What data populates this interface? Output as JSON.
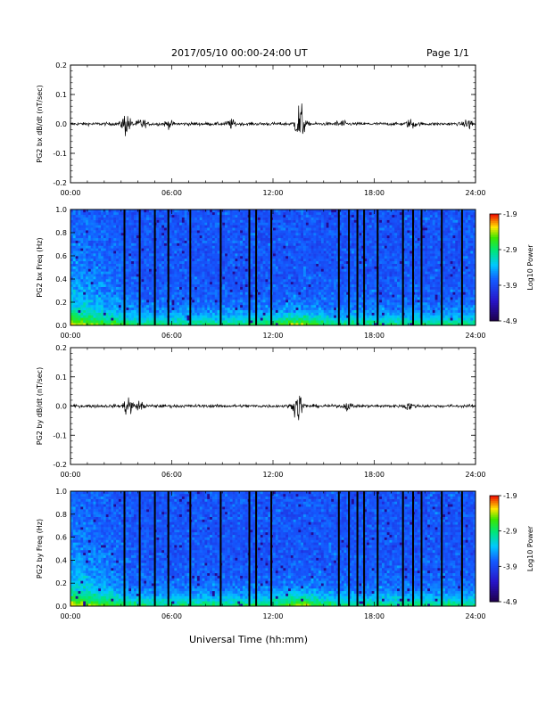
{
  "header": {
    "title": "2017/05/10  00:00-24:00 UT",
    "page": "Page 1/1"
  },
  "footer": {
    "xlabel": "Universal Time (hh:mm)"
  },
  "chart_data": [
    {
      "id": "bx_wave",
      "type": "line",
      "ylabel": "PG2 bx dB/dt (nT/sec)",
      "xlim": [
        0,
        24
      ],
      "ylim": [
        -0.2,
        0.2
      ],
      "xticks": [
        "00:00",
        "06:00",
        "12:00",
        "18:00",
        "24:00"
      ],
      "yticks": [
        "0.2",
        "0.1",
        "0.0",
        "-0.1",
        "-0.2"
      ],
      "bursts": [
        {
          "t": 3.3,
          "amp": 0.045
        },
        {
          "t": 4.2,
          "amp": 0.02
        },
        {
          "t": 5.8,
          "amp": 0.012
        },
        {
          "t": 9.5,
          "amp": 0.015
        },
        {
          "t": 13.6,
          "amp": 0.09
        },
        {
          "t": 16.0,
          "amp": 0.015
        },
        {
          "t": 20.2,
          "amp": 0.018
        },
        {
          "t": 23.6,
          "amp": 0.02
        }
      ]
    },
    {
      "id": "bx_spec",
      "type": "heatmap",
      "ylabel": "PG2 bx Freq (Hz)",
      "xlim": [
        0,
        24
      ],
      "ylim": [
        0,
        1.0
      ],
      "xticks": [
        "00:00",
        "06:00",
        "12:00",
        "18:00",
        "24:00"
      ],
      "yticks": [
        "1.0",
        "0.8",
        "0.6",
        "0.4",
        "0.2",
        "0.0"
      ],
      "colorbar": {
        "label": "Log10 Power",
        "ticks": [
          "-1.9",
          "-2.9",
          "-3.9",
          "-4.9"
        ],
        "range": [
          -4.9,
          -1.9
        ]
      },
      "gaps_hours": [
        3.2,
        4.1,
        5.0,
        5.8,
        7.1,
        8.9,
        10.6,
        11.0,
        11.9,
        15.9,
        16.5,
        17.0,
        17.4,
        18.2,
        19.7,
        20.3,
        20.8,
        22.0,
        23.2
      ]
    },
    {
      "id": "by_wave",
      "type": "line",
      "ylabel": "PG2 by dB/dt (nT/sec)",
      "xlim": [
        0,
        24
      ],
      "ylim": [
        -0.2,
        0.2
      ],
      "xticks": [
        "00:00",
        "06:00",
        "12:00",
        "18:00",
        "24:00"
      ],
      "yticks": [
        "0.2",
        "0.1",
        "0.0",
        "-0.1",
        "-0.2"
      ],
      "bursts": [
        {
          "t": 3.4,
          "amp": 0.04
        },
        {
          "t": 4.1,
          "amp": 0.015
        },
        {
          "t": 13.5,
          "amp": 0.06
        },
        {
          "t": 16.4,
          "amp": 0.012
        },
        {
          "t": 20.0,
          "amp": 0.015
        }
      ]
    },
    {
      "id": "by_spec",
      "type": "heatmap",
      "ylabel": "PG2 by Freq (Hz)",
      "xlim": [
        0,
        24
      ],
      "ylim": [
        0,
        1.0
      ],
      "xticks": [
        "00:00",
        "06:00",
        "12:00",
        "18:00",
        "24:00"
      ],
      "yticks": [
        "1.0",
        "0.8",
        "0.6",
        "0.4",
        "0.2",
        "0.0"
      ],
      "colorbar": {
        "label": "Log10 Power",
        "ticks": [
          "-1.9",
          "-2.9",
          "-3.9",
          "-4.9"
        ],
        "range": [
          -4.9,
          -1.9
        ]
      },
      "gaps_hours": [
        3.2,
        4.1,
        5.0,
        5.8,
        7.1,
        8.9,
        10.6,
        11.0,
        11.9,
        15.9,
        16.5,
        17.0,
        17.4,
        18.2,
        19.7,
        20.3,
        20.8,
        22.0,
        23.2
      ]
    }
  ]
}
